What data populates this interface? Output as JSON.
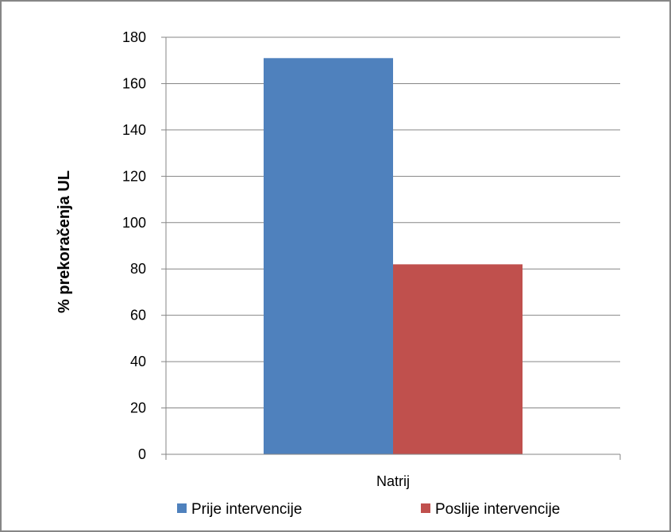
{
  "chart_data": {
    "type": "bar",
    "title": "",
    "xlabel": "",
    "ylabel": "% prekoračenja UL",
    "categories": [
      "Natrij"
    ],
    "series": [
      {
        "name": "Prije intervencije",
        "values": [
          171
        ],
        "color": "#4F81BD"
      },
      {
        "name": "Poslije intervencije",
        "values": [
          82
        ],
        "color": "#C0504D"
      }
    ],
    "ylim": [
      0,
      180
    ],
    "yticks": [
      0,
      20,
      40,
      60,
      80,
      100,
      120,
      140,
      160,
      180
    ],
    "grid": true,
    "legend_position": "bottom"
  }
}
